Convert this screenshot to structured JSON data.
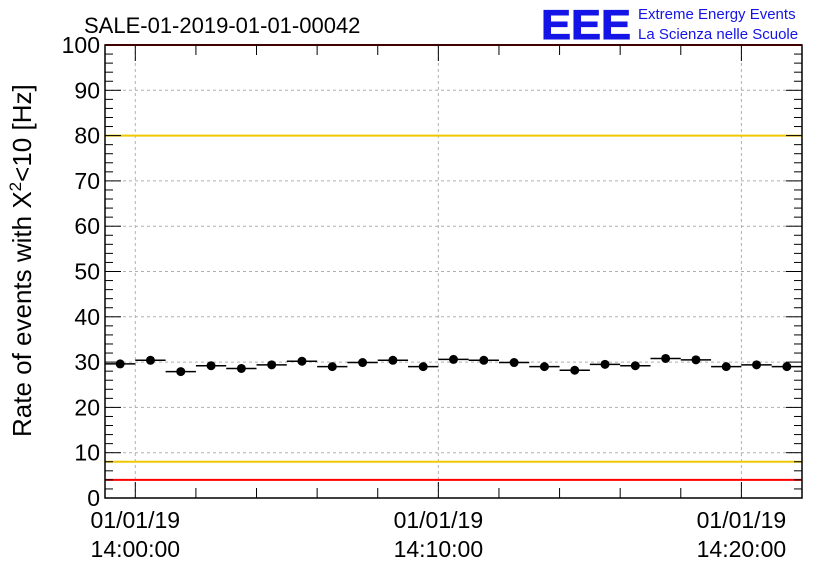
{
  "chart_data": {
    "type": "scatter",
    "title": "SALE-01-2019-01-01-00042",
    "ylabel_main": "Rate of events with X",
    "ylabel_sup": "2",
    "ylabel_tail": "<10 [Hz]",
    "xlabel": "",
    "ylim": [
      0,
      100
    ],
    "xlim_minutes": [
      -1,
      22
    ],
    "y_ticks": [
      0,
      10,
      20,
      30,
      40,
      50,
      60,
      70,
      80,
      90,
      100
    ],
    "x_major_ticks": [
      {
        "minute": 0,
        "date": "01/01/19",
        "time": "14:00:00"
      },
      {
        "minute": 10,
        "date": "01/01/19",
        "time": "14:10:00"
      },
      {
        "minute": 20,
        "date": "01/01/19",
        "time": "14:20:00"
      }
    ],
    "x_minor_step_minutes": 2,
    "grid": true,
    "bin_width_minutes": 1,
    "points": [
      {
        "x": -0.5,
        "y": 29.6
      },
      {
        "x": 0.5,
        "y": 30.4
      },
      {
        "x": 1.5,
        "y": 27.9
      },
      {
        "x": 2.5,
        "y": 29.2
      },
      {
        "x": 3.5,
        "y": 28.6
      },
      {
        "x": 4.5,
        "y": 29.4
      },
      {
        "x": 5.5,
        "y": 30.2
      },
      {
        "x": 6.5,
        "y": 29.0
      },
      {
        "x": 7.5,
        "y": 29.9
      },
      {
        "x": 8.5,
        "y": 30.4
      },
      {
        "x": 9.5,
        "y": 29.0
      },
      {
        "x": 10.5,
        "y": 30.6
      },
      {
        "x": 11.5,
        "y": 30.4
      },
      {
        "x": 12.5,
        "y": 29.9
      },
      {
        "x": 13.5,
        "y": 29.0
      },
      {
        "x": 14.5,
        "y": 28.2
      },
      {
        "x": 15.5,
        "y": 29.5
      },
      {
        "x": 16.5,
        "y": 29.2
      },
      {
        "x": 17.5,
        "y": 30.8
      },
      {
        "x": 18.5,
        "y": 30.5
      },
      {
        "x": 19.5,
        "y": 29.0
      },
      {
        "x": 20.5,
        "y": 29.4
      },
      {
        "x": 21.5,
        "y": 29.0
      }
    ],
    "reference_lines": [
      {
        "name": "upper-red-limit",
        "y": 100,
        "color": "#ff0000"
      },
      {
        "name": "upper-yellow-limit",
        "y": 80,
        "color": "#f0c800"
      },
      {
        "name": "lower-yellow-limit",
        "y": 8,
        "color": "#f0c800"
      },
      {
        "name": "lower-red-limit",
        "y": 4,
        "color": "#ff0000"
      }
    ]
  },
  "logo": {
    "letters": "EEE",
    "line1": "Extreme Energy Events",
    "line2": "La Scienza nelle Scuole",
    "color": "#1414e6"
  }
}
